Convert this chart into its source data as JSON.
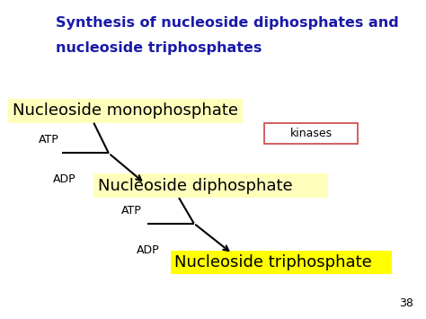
{
  "title_line1": "Synthesis of nucleoside diphosphates and",
  "title_line2": "nucleoside triphosphates",
  "title_color": "#1a1aaa",
  "title_fontsize": 11.5,
  "bg_color": "#ffffff",
  "label1": "Nucleoside monophosphate",
  "label2": "Nucleoside diphosphate",
  "label3": "Nucleoside triphosphate",
  "label1_bg": "#ffffbb",
  "label2_bg": "#ffffbb",
  "label3_bg": "#ffff00",
  "label1_fontsize": 13,
  "label2_fontsize": 13,
  "label3_fontsize": 13,
  "kinases_label": "kinases",
  "kinases_border": "#cc4444",
  "small_fontsize": 9,
  "page_num": "38",
  "page_fontsize": 9
}
